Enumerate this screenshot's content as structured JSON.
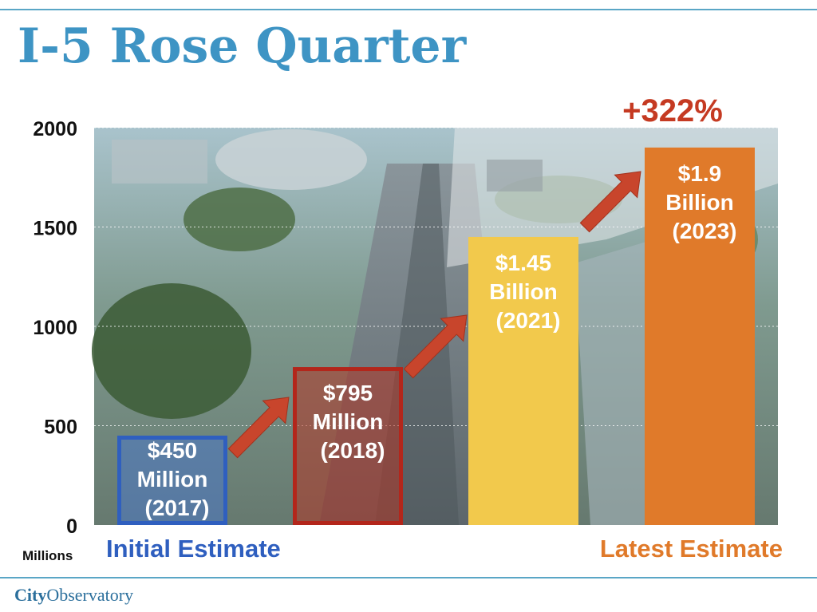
{
  "title": "I-5 Rose Quarter",
  "brand": {
    "part1": "City",
    "part2": "Observatory"
  },
  "colors": {
    "title": "#3e94c4",
    "initial": "#2f5fbf",
    "latest": "#e07a2a",
    "change": "#c53a22"
  },
  "chart_data": {
    "type": "bar",
    "categories": [
      "2017",
      "2018",
      "2021",
      "2023"
    ],
    "values": [
      450,
      795,
      1450,
      1900
    ],
    "bar_labels": [
      [
        "$450",
        "Million",
        "(2017)"
      ],
      [
        "$795",
        "Million",
        "(2018)"
      ],
      [
        "$1.45",
        "Billion",
        "(2021)"
      ],
      [
        "$1.9",
        "Billion",
        "(2023)"
      ]
    ],
    "bar_colors": [
      "#4a78c8",
      "#b23424",
      "#f2c94c",
      "#e07a2a"
    ],
    "bar_styles": [
      "outlined-translucent",
      "outlined-translucent",
      "solid",
      "solid"
    ],
    "ylim": [
      0,
      2000
    ],
    "yticks": [
      "0",
      "500",
      "1000",
      "1500",
      "2000"
    ],
    "ylabel": "Millions",
    "grid": true,
    "annotations": {
      "initial": "Initial Estimate",
      "latest": "Latest Estimate",
      "change": "+322%"
    },
    "background": "aerial photo of freeway"
  }
}
